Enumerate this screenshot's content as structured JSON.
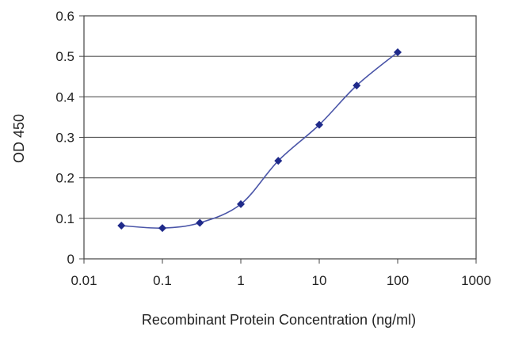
{
  "chart_data": {
    "type": "line",
    "title": "",
    "xlabel": "Recombinant Protein Concentration (ng/ml)",
    "ylabel": "OD 450",
    "x_scale": "log",
    "xlim": [
      0.01,
      1000
    ],
    "ylim": [
      0,
      0.6
    ],
    "x_ticks": [
      "0.01",
      "0.1",
      "1",
      "10",
      "100",
      "1000"
    ],
    "y_ticks": [
      "0",
      "0.1",
      "0.2",
      "0.3",
      "0.4",
      "0.5",
      "0.6"
    ],
    "grid": "horizontal",
    "legend": "none",
    "series": [
      {
        "x": [
          0.03,
          0.1,
          0.3,
          1,
          3,
          10,
          30,
          100
        ],
        "y": [
          0.082,
          0.076,
          0.089,
          0.135,
          0.242,
          0.331,
          0.428,
          0.51
        ]
      }
    ],
    "colors": {
      "line": "#4a55a8",
      "marker": "#1f2a8a",
      "grid": "#555555",
      "frame": "#444444"
    }
  }
}
